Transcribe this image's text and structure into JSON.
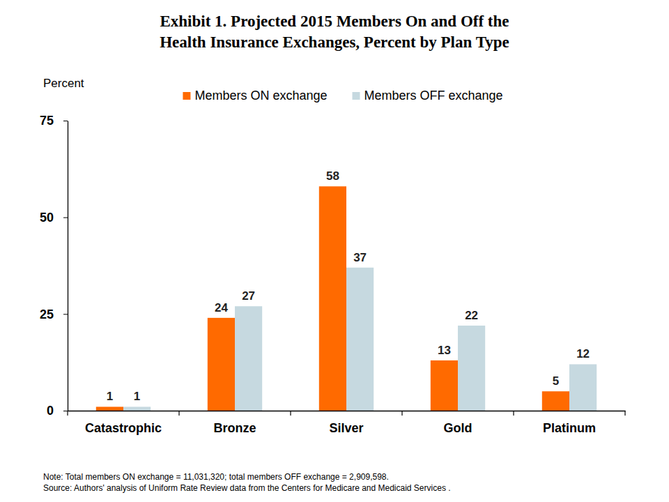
{
  "chart_data": {
    "type": "bar",
    "title": "Exhibit 1. Projected 2015 Members On and Off the\nHealth Insurance Exchanges, Percent by Plan Type",
    "y_label": "Percent",
    "categories": [
      "Catastrophic",
      "Bronze",
      "Silver",
      "Gold",
      "Platinum"
    ],
    "series": [
      {
        "name": "Members ON exchange",
        "color": "#ff6a00",
        "values": [
          1,
          24,
          58,
          13,
          5
        ]
      },
      {
        "name": "Members OFF exchange",
        "color": "#c6d9e0",
        "values": [
          1,
          27,
          37,
          22,
          12
        ]
      }
    ],
    "ylim": [
      0,
      75
    ],
    "yticks": [
      0,
      25,
      50,
      75
    ],
    "grid": false,
    "legend": "top",
    "data_labels": true,
    "notes": [
      "Note: Total members ON exchange = 11,031,320;  total members OFF exchange = 2,909,598.",
      "Source: Authors' analysis of Uniform Rate Review data from the Centers for Medicare and Medicaid Services ."
    ]
  }
}
